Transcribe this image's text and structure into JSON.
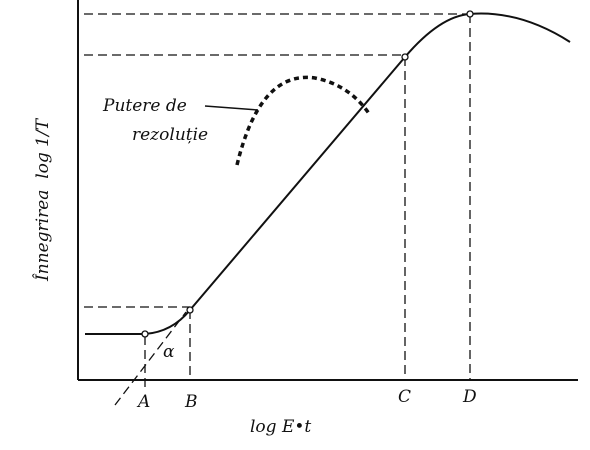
{
  "labels": {
    "y_axis": "Înnegrirea  log 1/T",
    "x_axis": "log E•t",
    "points": [
      "A",
      "B",
      "C",
      "D"
    ],
    "angle": "α",
    "annotation": [
      "Putere de",
      "rezoluție"
    ]
  }
}
